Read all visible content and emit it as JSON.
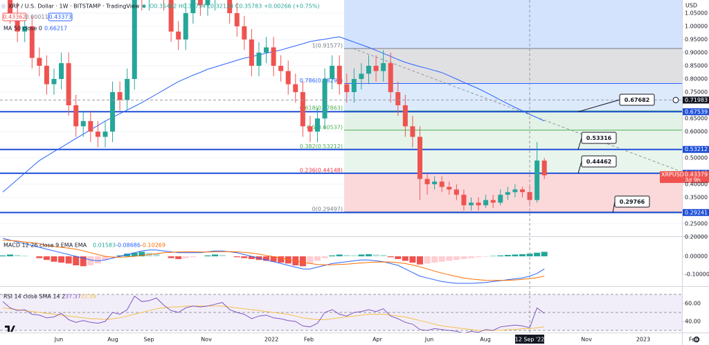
{
  "header": {
    "title": "XRP / U.S. Dollar · 1W · BITSTAMP · TradingView",
    "ohlc": "O0.35462 H0.39754 L0.32124 C0.35783 +0.00266 (+0.75%)",
    "quotes": [
      "0.43362",
      "0.00011",
      "0.43373"
    ]
  },
  "time_axis": {
    "labels": [
      "Jun",
      "Aug",
      "Sep",
      "Nov",
      "2022",
      "Feb",
      "Apr",
      "Jun",
      "Aug",
      "Nov",
      "2023",
      "Feb"
    ],
    "crosshair": "12 Sep '22"
  },
  "chart_data": [
    {
      "type": "candlestick",
      "ylabel": "USD",
      "symbol": "XRPUSD",
      "countdown": "3d 9h",
      "up_color": "#26a69a",
      "down_color": "#ef5350",
      "grid": true,
      "ylim": [
        0.205,
        1.1
      ],
      "yticks": [
        {
          "value": 1.05,
          "label": "1.05000"
        },
        {
          "value": 1.0,
          "label": "1.00000"
        },
        {
          "value": 0.95,
          "label": "0.95000"
        },
        {
          "value": 0.9,
          "label": "0.90000"
        },
        {
          "value": 0.85,
          "label": "0.85000"
        },
        {
          "value": 0.8,
          "label": "0.80000"
        },
        {
          "value": 0.75,
          "label": "0.75000"
        },
        {
          "value": 0.65,
          "label": "0.65000"
        },
        {
          "value": 0.6,
          "label": "0.60000"
        },
        {
          "value": 0.5,
          "label": "0.50000"
        },
        {
          "value": 0.4,
          "label": "0.40000"
        },
        {
          "value": 0.35,
          "label": "0.35000"
        },
        {
          "value": 0.25,
          "label": "0.25000"
        },
        {
          "value": 0.2,
          "label": "0.20000"
        }
      ],
      "open": [
        1.3,
        1.4,
        1.05,
        0.98,
        1.0,
        0.88,
        0.85,
        0.78,
        0.8,
        0.86,
        0.7,
        0.62,
        0.64,
        0.6,
        0.58,
        0.6,
        0.75,
        0.72,
        0.8,
        1.2,
        1.1,
        1.15,
        1.25,
        1.1,
        0.98,
        0.95,
        1.05,
        1.1,
        1.08,
        1.1,
        1.15,
        1.2,
        1.05,
        1.0,
        0.95,
        0.85,
        0.9,
        0.92,
        0.85,
        0.83,
        0.78,
        0.75,
        0.62,
        0.6,
        0.65,
        0.8,
        0.85,
        0.78,
        0.75,
        0.8,
        0.82,
        0.85,
        0.83,
        0.86,
        0.75,
        0.7,
        0.62,
        0.58,
        0.42,
        0.4,
        0.41,
        0.39,
        0.38,
        0.36,
        0.32,
        0.33,
        0.32,
        0.34,
        0.33,
        0.36,
        0.37,
        0.38,
        0.37,
        0.34,
        0.49
      ],
      "high": [
        1.44,
        1.44,
        1.09,
        1.04,
        1.04,
        0.92,
        0.89,
        0.84,
        0.9,
        0.9,
        0.74,
        0.68,
        0.68,
        0.64,
        0.64,
        0.79,
        0.79,
        0.84,
        1.24,
        1.24,
        1.19,
        1.29,
        1.29,
        1.14,
        1.02,
        1.09,
        1.14,
        1.14,
        1.14,
        1.19,
        1.24,
        1.24,
        1.09,
        1.04,
        0.99,
        0.94,
        0.96,
        0.96,
        0.89,
        0.87,
        0.82,
        0.79,
        0.66,
        0.69,
        0.84,
        0.89,
        0.89,
        0.82,
        0.84,
        0.86,
        0.89,
        0.89,
        0.91,
        0.9,
        0.79,
        0.74,
        0.66,
        0.62,
        0.44,
        0.43,
        0.43,
        0.41,
        0.4,
        0.38,
        0.35,
        0.35,
        0.36,
        0.36,
        0.38,
        0.39,
        0.4,
        0.39,
        0.39,
        0.56,
        0.5
      ],
      "low": [
        1.26,
        1.01,
        0.94,
        0.94,
        0.84,
        0.81,
        0.74,
        0.74,
        0.76,
        0.66,
        0.58,
        0.58,
        0.56,
        0.54,
        0.54,
        0.56,
        0.68,
        0.68,
        0.76,
        1.06,
        1.06,
        1.11,
        1.06,
        0.94,
        0.91,
        0.91,
        1.01,
        1.04,
        1.04,
        1.06,
        1.11,
        1.01,
        0.96,
        0.91,
        0.81,
        0.81,
        0.86,
        0.81,
        0.79,
        0.74,
        0.71,
        0.58,
        0.56,
        0.56,
        0.61,
        0.76,
        0.74,
        0.71,
        0.71,
        0.76,
        0.78,
        0.79,
        0.79,
        0.71,
        0.66,
        0.58,
        0.54,
        0.34,
        0.36,
        0.38,
        0.37,
        0.36,
        0.34,
        0.3,
        0.3,
        0.3,
        0.31,
        0.31,
        0.32,
        0.34,
        0.35,
        0.35,
        0.32,
        0.33,
        0.42
      ],
      "close": [
        1.4,
        1.05,
        0.98,
        1.0,
        0.88,
        0.85,
        0.78,
        0.8,
        0.86,
        0.7,
        0.62,
        0.64,
        0.6,
        0.58,
        0.6,
        0.75,
        0.72,
        0.8,
        1.2,
        1.1,
        1.15,
        1.25,
        1.1,
        0.98,
        0.95,
        1.05,
        1.1,
        1.08,
        1.1,
        1.15,
        1.2,
        1.05,
        1.0,
        0.95,
        0.85,
        0.9,
        0.92,
        0.85,
        0.83,
        0.78,
        0.75,
        0.62,
        0.6,
        0.65,
        0.8,
        0.85,
        0.78,
        0.75,
        0.8,
        0.82,
        0.85,
        0.83,
        0.86,
        0.75,
        0.7,
        0.62,
        0.58,
        0.42,
        0.4,
        0.41,
        0.39,
        0.38,
        0.36,
        0.32,
        0.33,
        0.32,
        0.34,
        0.33,
        0.36,
        0.37,
        0.38,
        0.37,
        0.34,
        0.49,
        0.43379
      ],
      "series": [
        {
          "name": "MA 50 close 0",
          "value_label": "0.66217",
          "color": "#2962ff",
          "values": [
            0.37,
            0.394,
            0.418,
            0.442,
            0.466,
            0.49,
            0.507,
            0.524,
            0.54,
            0.557,
            0.574,
            0.59,
            0.607,
            0.623,
            0.64,
            0.654,
            0.668,
            0.682,
            0.696,
            0.71,
            0.726,
            0.742,
            0.758,
            0.774,
            0.79,
            0.802,
            0.814,
            0.825,
            0.837,
            0.845,
            0.854,
            0.862,
            0.871,
            0.879,
            0.885,
            0.891,
            0.898,
            0.904,
            0.91,
            0.918,
            0.926,
            0.934,
            0.942,
            0.947,
            0.951,
            0.956,
            0.96,
            0.95,
            0.94,
            0.93,
            0.92,
            0.909,
            0.897,
            0.886,
            0.874,
            0.863,
            0.855,
            0.847,
            0.84,
            0.832,
            0.824,
            0.812,
            0.8,
            0.787,
            0.775,
            0.763,
            0.749,
            0.735,
            0.72,
            0.706,
            0.692,
            0.679,
            0.666,
            0.653,
            0.64
          ]
        }
      ],
      "fib": {
        "levels": [
          {
            "value": 0.91577,
            "label": "1(0.91577)"
          },
          {
            "value": 0.78292,
            "label": "0.786(0.78292)"
          },
          {
            "value": 0.67863,
            "label": "0.618(0.67863)"
          },
          {
            "value": 0.60537,
            "label": "0.5(0.60537)"
          },
          {
            "value": 0.53212,
            "label": "0.382(0.53212)"
          },
          {
            "value": 0.44148,
            "label": "0.236(0.44148)"
          },
          {
            "value": 0.29497,
            "label": "0(0.29497)"
          }
        ],
        "level_colors": [
          "#787b86",
          "#2962ff",
          "#4caf50",
          "#4caf50",
          "#4caf50",
          "#f23645",
          "#787b86"
        ],
        "zone_colors": [
          "#d3e2fd",
          "#e0e0e3",
          "#dceafc",
          "#e2f2e6",
          "#e6f4ea",
          "#e8f5ec",
          "#fbd9db"
        ]
      },
      "levels": [
        0.67539,
        0.53212,
        0.44143,
        0.29241
      ],
      "level_color": "#1e4fd8",
      "callouts": [
        0.67682,
        0.53316,
        0.44462,
        0.29766
      ],
      "crosshair": 0.71983
    },
    {
      "type": "macd",
      "name": "MACD 12 26 close 9 EMA EMA",
      "legend_values": [
        0.01583,
        -0.08686,
        -0.10269
      ],
      "ylim": [
        -0.155,
        0.1
      ],
      "yticks": [
        {
          "value": 0,
          "label": "0.00000"
        },
        {
          "value": -0.1,
          "label": "-0.10000"
        }
      ],
      "hist_colors": [
        "#26a69a",
        "#b2dfdb",
        "#ffcdd2",
        "#ef5350"
      ],
      "macd_color": "#2962ff",
      "signal_color": "#ff6d00",
      "histogram": [
        0.005,
        0.01,
        0.008,
        0.004,
        0.0,
        -0.01,
        -0.02,
        -0.03,
        -0.035,
        -0.04,
        -0.05,
        -0.055,
        -0.05,
        -0.04,
        -0.02,
        -0.005,
        0.005,
        0.015,
        0.02,
        0.025,
        0.02,
        0.015,
        0.0,
        -0.01,
        -0.015,
        -0.01,
        -0.005,
        0.0,
        0.005,
        0.01,
        0.008,
        0.0,
        -0.005,
        -0.01,
        -0.015,
        -0.02,
        -0.025,
        -0.03,
        -0.035,
        -0.04,
        -0.05,
        -0.055,
        -0.04,
        -0.025,
        -0.01,
        0.005,
        0.01,
        0.008,
        0.006,
        0.01,
        0.012,
        0.01,
        0.008,
        -0.005,
        -0.015,
        -0.025,
        -0.035,
        -0.045,
        -0.04,
        -0.035,
        -0.03,
        -0.025,
        -0.02,
        -0.015,
        -0.01,
        -0.005,
        -0.003,
        0.002,
        0.005,
        0.008,
        0.01,
        0.012,
        0.015,
        0.02,
        0.025
      ],
      "macd": [
        0.1,
        0.09,
        0.08,
        0.07,
        0.06,
        0.05,
        0.04,
        0.03,
        0.02,
        0.01,
        0.0,
        -0.01,
        -0.02,
        -0.025,
        -0.02,
        -0.01,
        0.0,
        0.01,
        0.02,
        0.03,
        0.035,
        0.035,
        0.03,
        0.025,
        0.02,
        0.02,
        0.02,
        0.02,
        0.025,
        0.03,
        0.03,
        0.025,
        0.02,
        0.01,
        0.0,
        -0.01,
        -0.02,
        -0.03,
        -0.04,
        -0.05,
        -0.06,
        -0.07,
        -0.07,
        -0.06,
        -0.05,
        -0.04,
        -0.035,
        -0.03,
        -0.025,
        -0.02,
        -0.02,
        -0.025,
        -0.03,
        -0.04,
        -0.05,
        -0.07,
        -0.09,
        -0.11,
        -0.12,
        -0.13,
        -0.14,
        -0.145,
        -0.15,
        -0.15,
        -0.15,
        -0.148,
        -0.145,
        -0.14,
        -0.135,
        -0.13,
        -0.125,
        -0.12,
        -0.11,
        -0.095,
        -0.07
      ],
      "signal": [
        0.09,
        0.088,
        0.085,
        0.08,
        0.075,
        0.07,
        0.06,
        0.055,
        0.05,
        0.045,
        0.04,
        0.03,
        0.02,
        0.01,
        0.0,
        -0.005,
        -0.005,
        -0.003,
        0.0,
        0.005,
        0.01,
        0.015,
        0.02,
        0.022,
        0.024,
        0.025,
        0.025,
        0.024,
        0.024,
        0.025,
        0.026,
        0.026,
        0.025,
        0.022,
        0.018,
        0.012,
        0.005,
        -0.002,
        -0.01,
        -0.018,
        -0.026,
        -0.034,
        -0.04,
        -0.045,
        -0.047,
        -0.047,
        -0.045,
        -0.043,
        -0.04,
        -0.037,
        -0.034,
        -0.032,
        -0.031,
        -0.032,
        -0.035,
        -0.04,
        -0.048,
        -0.058,
        -0.07,
        -0.082,
        -0.093,
        -0.103,
        -0.112,
        -0.12,
        -0.126,
        -0.13,
        -0.133,
        -0.134,
        -0.134,
        -0.133,
        -0.131,
        -0.128,
        -0.124,
        -0.118,
        -0.11
      ]
    },
    {
      "type": "rsi",
      "name": "RSI 14 close SMA 14 2",
      "legend_values": [
        37.37,
        33.39
      ],
      "ylim": [
        29.2,
        73.8
      ],
      "yticks": [
        {
          "value": 60,
          "label": "60.00"
        },
        {
          "value": 40,
          "label": "40.00"
        }
      ],
      "band": [
        30,
        70
      ],
      "midline": 50,
      "rsi_color": "#7e57c2",
      "sma_color": "#f5c04a",
      "rsi": [
        62,
        55,
        52,
        53,
        48,
        47,
        44,
        45,
        49,
        42,
        39,
        41,
        39,
        38,
        40,
        50,
        48,
        53,
        68,
        62,
        63,
        66,
        58,
        52,
        50,
        55,
        57,
        56,
        57,
        59,
        61,
        53,
        50,
        48,
        43,
        46,
        47,
        44,
        43,
        41,
        40,
        35,
        34,
        38,
        50,
        53,
        48,
        46,
        50,
        51,
        53,
        51,
        54,
        46,
        43,
        39,
        37,
        31,
        30,
        32,
        31,
        30,
        29,
        27,
        29,
        28,
        31,
        30,
        34,
        35,
        36,
        35,
        33,
        55,
        49
      ],
      "sma": [
        55,
        54,
        53,
        52,
        51,
        50,
        49,
        48,
        47,
        46,
        45,
        44,
        43,
        43,
        42,
        43,
        44,
        46,
        48,
        50,
        52,
        54,
        55,
        56,
        56,
        57,
        57,
        57,
        57,
        57,
        57,
        56,
        55,
        54,
        53,
        52,
        51,
        50,
        49,
        48,
        46,
        44,
        43,
        42,
        42,
        43,
        44,
        45,
        46,
        47,
        48,
        48,
        48,
        47,
        46,
        45,
        43,
        41,
        39,
        37,
        35,
        34,
        33,
        32,
        31,
        30,
        30,
        30,
        30,
        31,
        31,
        32,
        32,
        33,
        34
      ]
    }
  ]
}
